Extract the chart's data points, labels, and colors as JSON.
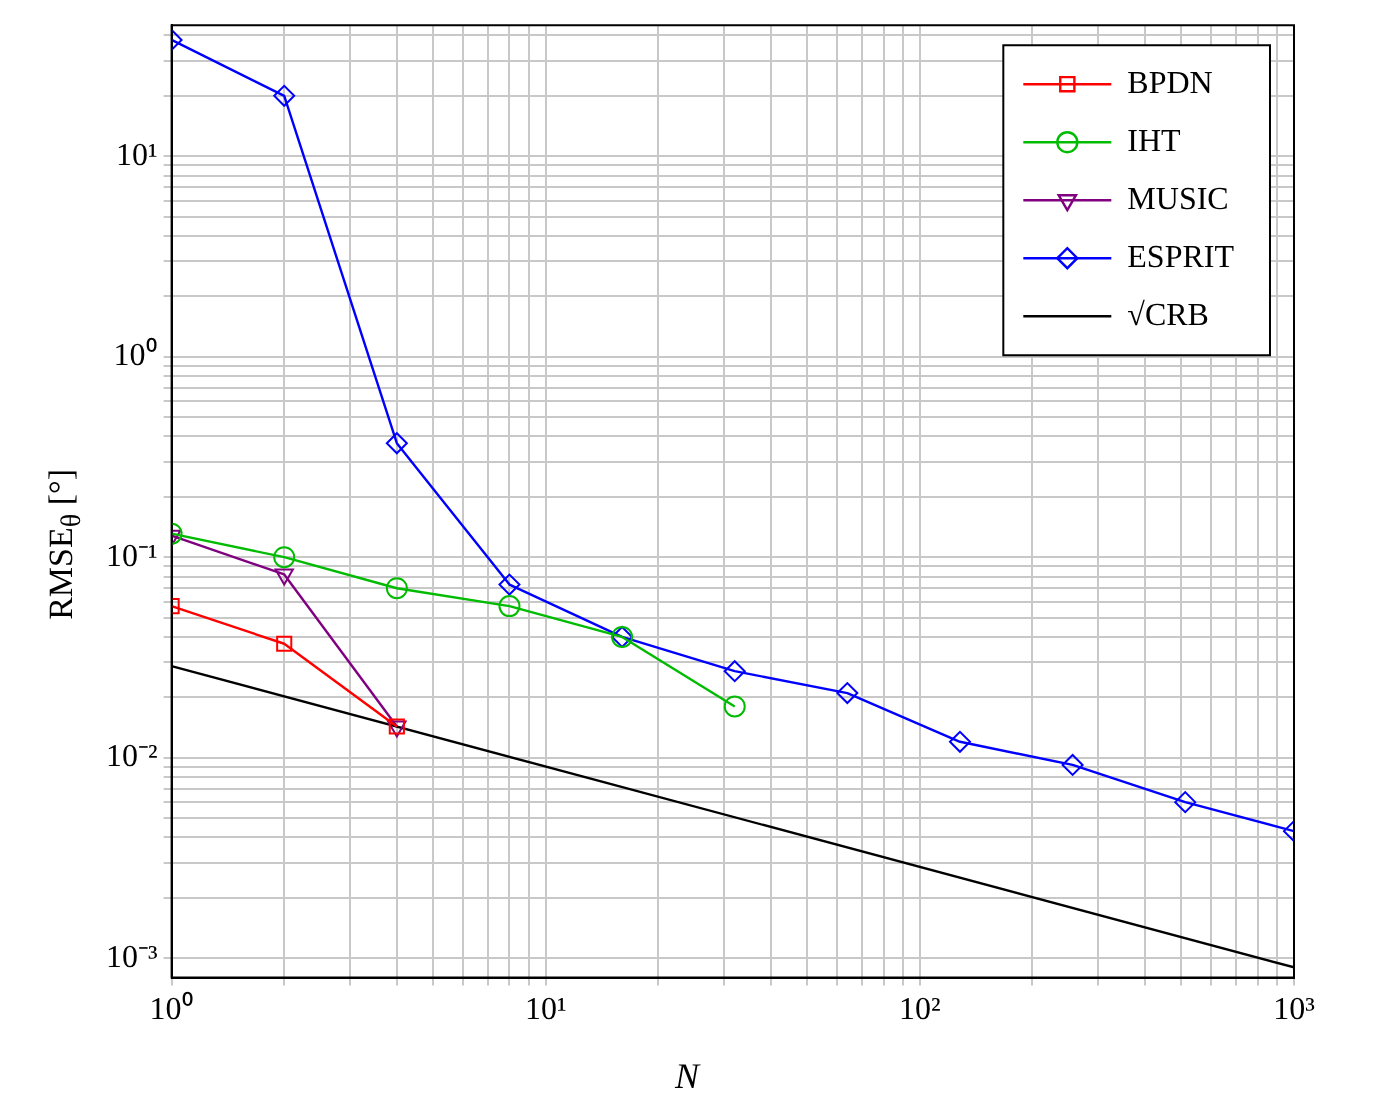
{
  "chart_data": {
    "type": "line",
    "xlabel": "N",
    "ylabel": "RMSE$_{θ}$ [°]",
    "log": "xy",
    "grid": true,
    "legend": "top right",
    "xlim": [
      1,
      1000
    ],
    "ylim": [
      0.0008,
      45
    ],
    "xticks": [
      {
        "value": 1,
        "label": "10⁰"
      },
      {
        "value": 2,
        "label": null
      },
      {
        "value": 3,
        "label": null
      },
      {
        "value": 4,
        "label": null
      },
      {
        "value": 5,
        "label": null
      },
      {
        "value": 6,
        "label": null
      },
      {
        "value": 7,
        "label": null
      },
      {
        "value": 8,
        "label": null
      },
      {
        "value": 9,
        "label": null
      },
      {
        "value": 10,
        "label": "10¹"
      },
      {
        "value": 20,
        "label": null
      },
      {
        "value": 30,
        "label": null
      },
      {
        "value": 40,
        "label": null
      },
      {
        "value": 50,
        "label": null
      },
      {
        "value": 60,
        "label": null
      },
      {
        "value": 70,
        "label": null
      },
      {
        "value": 80,
        "label": null
      },
      {
        "value": 90,
        "label": null
      },
      {
        "value": 100,
        "label": "10²"
      },
      {
        "value": 200,
        "label": null
      },
      {
        "value": 300,
        "label": null
      },
      {
        "value": 400,
        "label": null
      },
      {
        "value": 500,
        "label": null
      },
      {
        "value": 600,
        "label": null
      },
      {
        "value": 700,
        "label": null
      },
      {
        "value": 800,
        "label": null
      },
      {
        "value": 900,
        "label": null
      },
      {
        "value": 1000,
        "label": "10³"
      }
    ],
    "yticks": [
      {
        "value": 0.001,
        "label": "10⁻³"
      },
      {
        "value": 0.002,
        "label": null
      },
      {
        "value": 0.003,
        "label": null
      },
      {
        "value": 0.004,
        "label": null
      },
      {
        "value": 0.005,
        "label": null
      },
      {
        "value": 0.006,
        "label": null
      },
      {
        "value": 0.007,
        "label": null
      },
      {
        "value": 0.008,
        "label": null
      },
      {
        "value": 0.009,
        "label": null
      },
      {
        "value": 0.01,
        "label": "10⁻²"
      },
      {
        "value": 0.02,
        "label": null
      },
      {
        "value": 0.03,
        "label": null
      },
      {
        "value": 0.04,
        "label": null
      },
      {
        "value": 0.05,
        "label": null
      },
      {
        "value": 0.06,
        "label": null
      },
      {
        "value": 0.07,
        "label": null
      },
      {
        "value": 0.08,
        "label": null
      },
      {
        "value": 0.09,
        "label": null
      },
      {
        "value": 0.1,
        "label": "10⁻¹"
      },
      {
        "value": 0.2,
        "label": null
      },
      {
        "value": 0.3,
        "label": null
      },
      {
        "value": 0.4,
        "label": null
      },
      {
        "value": 0.5,
        "label": null
      },
      {
        "value": 0.6,
        "label": null
      },
      {
        "value": 0.7,
        "label": null
      },
      {
        "value": 0.8,
        "label": null
      },
      {
        "value": 0.9,
        "label": null
      },
      {
        "value": 1,
        "label": "10⁰"
      },
      {
        "value": 2,
        "label": null
      },
      {
        "value": 3,
        "label": null
      },
      {
        "value": 4,
        "label": null
      },
      {
        "value": 5,
        "label": null
      },
      {
        "value": 6,
        "label": null
      },
      {
        "value": 7,
        "label": null
      },
      {
        "value": 8,
        "label": null
      },
      {
        "value": 9,
        "label": null
      },
      {
        "value": 10,
        "label": "10¹"
      },
      {
        "value": 20,
        "label": null
      },
      {
        "value": 30,
        "label": null
      },
      {
        "value": 40,
        "label": null
      }
    ],
    "series": [
      {
        "name": "BPDN",
        "color": "#ff0000",
        "marker": "square",
        "x": [
          1,
          2,
          4
        ],
        "values": [
          0.057,
          0.037,
          0.0143
        ]
      },
      {
        "name": "IHT",
        "color": "#00bb00",
        "marker": "circle",
        "x": [
          1,
          2,
          4,
          8,
          16,
          32
        ],
        "values": [
          0.131,
          0.1,
          0.07,
          0.057,
          0.04,
          0.018
        ]
      },
      {
        "name": "MUSIC",
        "color": "#800080",
        "marker": "triangle",
        "x": [
          1,
          2,
          4
        ],
        "values": [
          0.128,
          0.082,
          0.0143
        ]
      },
      {
        "name": "ESPRIT",
        "color": "#0000ff",
        "marker": "diamond",
        "x": [
          1,
          2,
          4,
          8,
          16,
          32,
          64,
          128,
          256,
          512,
          1000
        ],
        "values": [
          38,
          20,
          0.37,
          0.073,
          0.04,
          0.027,
          0.021,
          0.012,
          0.0092,
          0.006,
          0.0043
        ]
      },
      {
        "name": "√CRB",
        "color": "#000000",
        "marker": "none",
        "x": [
          1,
          1000
        ],
        "values": [
          0.0286,
          0.0009
        ]
      }
    ]
  }
}
